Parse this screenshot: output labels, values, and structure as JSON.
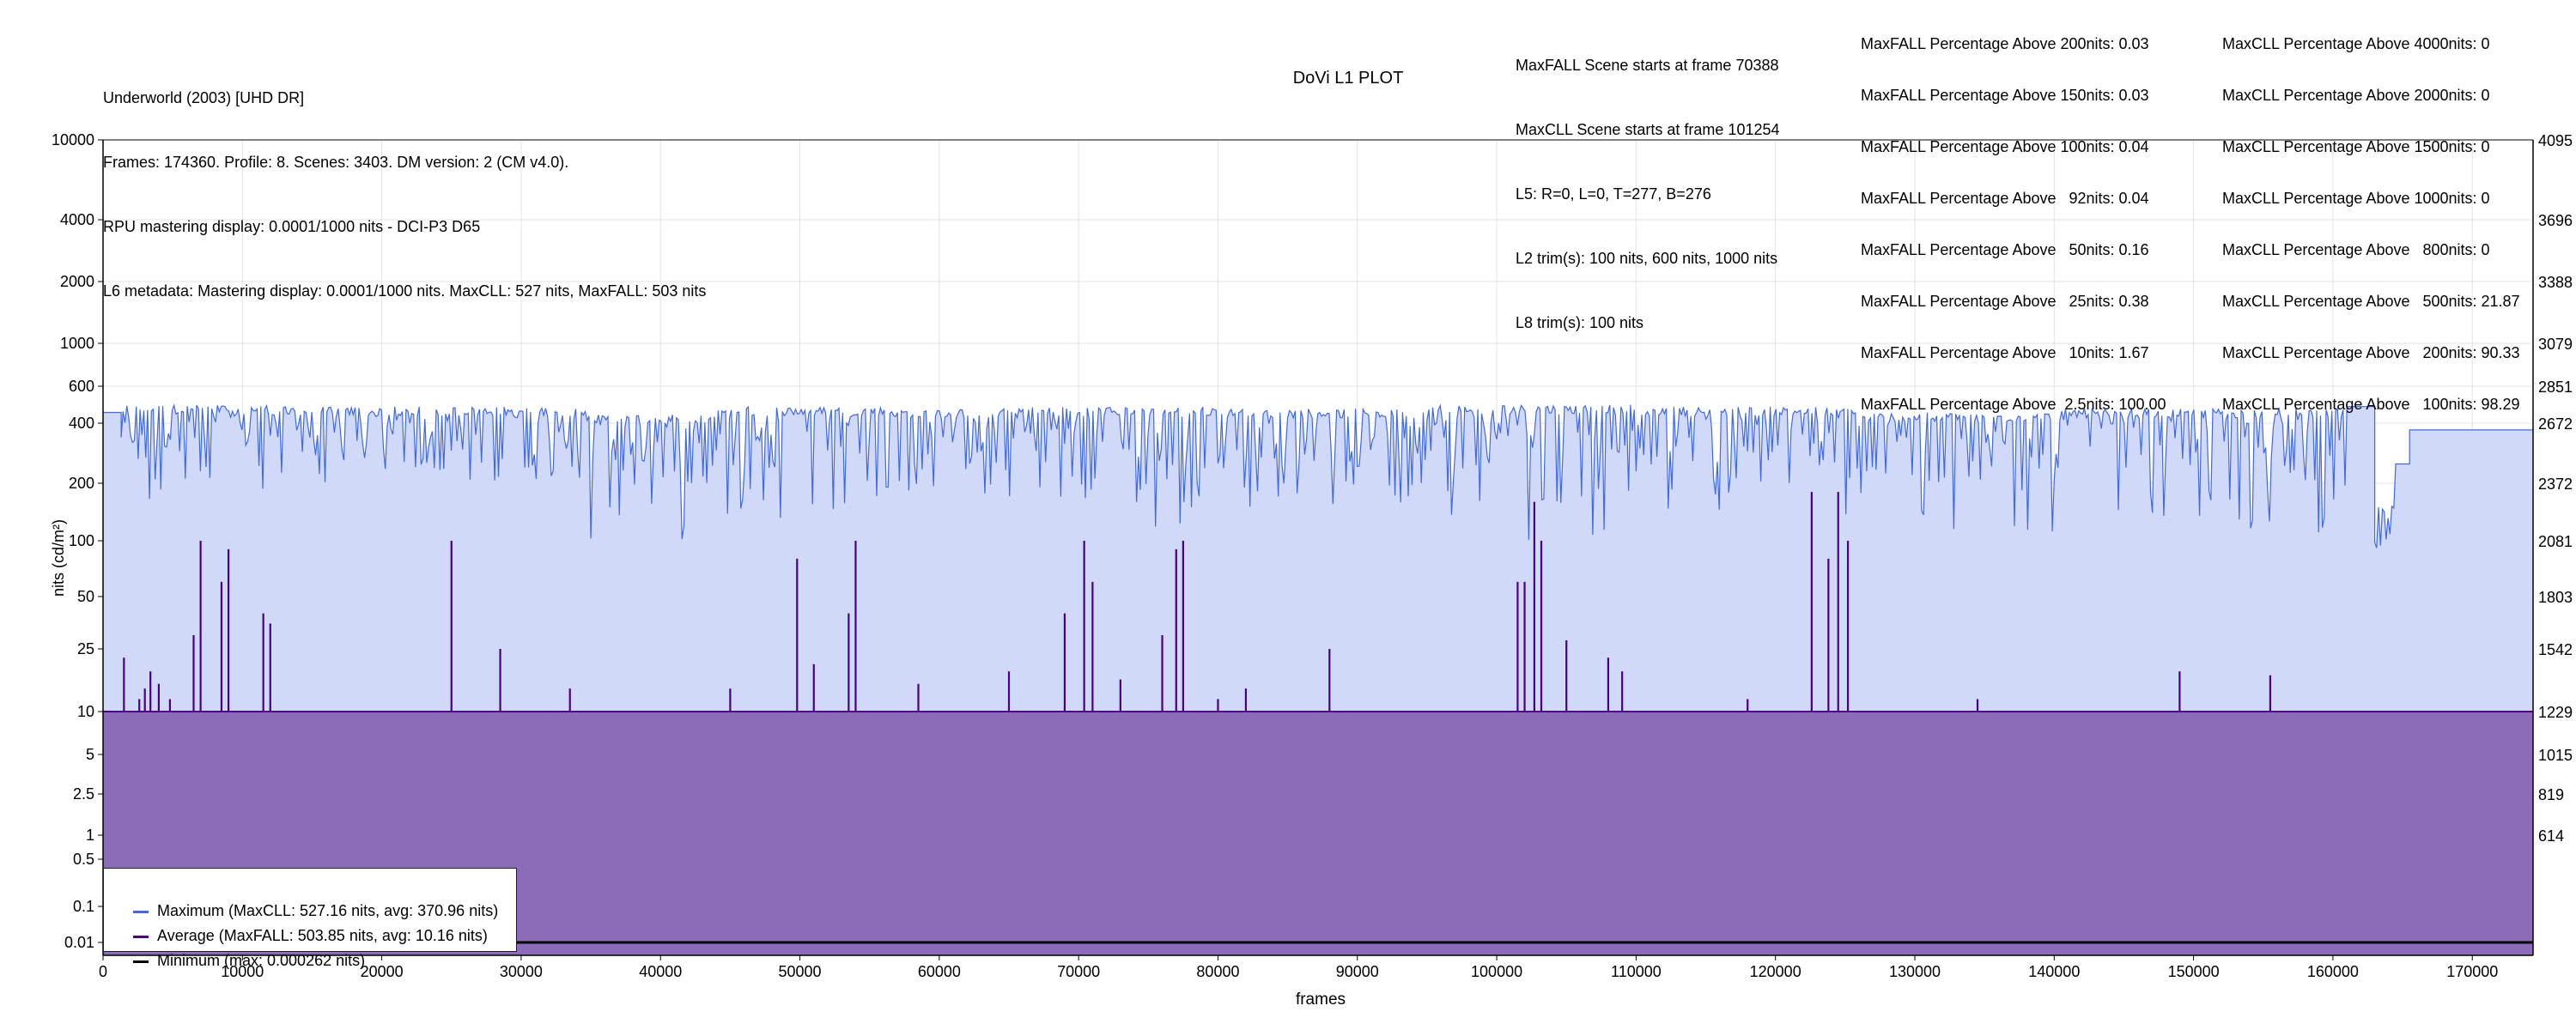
{
  "header": {
    "lines": [
      "Underworld (2003) [UHD DR]",
      "Frames: 174360. Profile: 8. Scenes: 3403. DM version: 2 (CM v4.0).",
      "RPU mastering display: 0.0001/1000 nits - DCI-P3 D65",
      "L6 metadata: Mastering display: 0.0001/1000 nits. MaxCLL: 527 nits, MaxFALL: 503 nits"
    ],
    "plot_title": "DoVi L1 PLOT",
    "scene_info": [
      "MaxFALL Scene starts at frame 70388",
      "MaxCLL Scene starts at frame 101254",
      "L5: R=0, L=0, T=277, B=276",
      "L2 trim(s): 100 nits, 600 nits, 1000 nits",
      "L8 trim(s): 100 nits"
    ],
    "maxfall_stats": [
      "MaxFALL Percentage Above 200nits: 0.03",
      "MaxFALL Percentage Above 150nits: 0.03",
      "MaxFALL Percentage Above 100nits: 0.04",
      "MaxFALL Percentage Above   92nits: 0.04",
      "MaxFALL Percentage Above   50nits: 0.16",
      "MaxFALL Percentage Above   25nits: 0.38",
      "MaxFALL Percentage Above   10nits: 1.67",
      "MaxFALL Percentage Above  2.5nits: 100.00"
    ],
    "maxcll_stats": [
      "MaxCLL Percentage Above 4000nits: 0",
      "MaxCLL Percentage Above 2000nits: 0",
      "MaxCLL Percentage Above 1500nits: 0",
      "MaxCLL Percentage Above 1000nits: 0",
      "MaxCLL Percentage Above   800nits: 0",
      "MaxCLL Percentage Above   500nits: 21.87",
      "MaxCLL Percentage Above   200nits: 90.33",
      "MaxCLL Percentage Above   100nits: 98.29"
    ]
  },
  "legend": {
    "items": [
      {
        "label": "Maximum (MaxCLL: 527.16 nits, avg: 370.96 nits)",
        "color": "#4169e1"
      },
      {
        "label": "Average (MaxFALL: 503.85 nits, avg: 10.16 nits)",
        "color": "#4b0082"
      },
      {
        "label": "Minimum (max: 0.000262 nits)",
        "color": "#000000"
      }
    ]
  },
  "chart_data": {
    "type": "line",
    "title": "DoVi L1 PLOT",
    "xlabel": "frames",
    "ylabel": "nits (cd/m²)",
    "xlim": [
      0,
      174360
    ],
    "y_scale": "pq",
    "x_ticks": [
      0,
      10000,
      20000,
      30000,
      40000,
      50000,
      60000,
      70000,
      80000,
      90000,
      100000,
      110000,
      120000,
      130000,
      140000,
      150000,
      160000,
      170000
    ],
    "x_tick_labels": [
      "0",
      "10000",
      "20000",
      "30000",
      "40000",
      "50000",
      "60000",
      "70000",
      "80000",
      "90000",
      "100000",
      "110000",
      "120000",
      "130000",
      "140000",
      "150000",
      "160000",
      "170000"
    ],
    "y_ticks": [
      {
        "label": "10000",
        "right": "4095"
      },
      {
        "label": "4000",
        "right": "3696"
      },
      {
        "label": "2000",
        "right": "3388"
      },
      {
        "label": "1000",
        "right": "3079"
      },
      {
        "label": "600",
        "right": "2851"
      },
      {
        "label": "400",
        "right": "2672"
      },
      {
        "label": "200",
        "right": "2372"
      },
      {
        "label": "100",
        "right": "2081"
      },
      {
        "label": "50",
        "right": "1803"
      },
      {
        "label": "25",
        "right": "1542"
      },
      {
        "label": "10",
        "right": "1229"
      },
      {
        "label": "5",
        "right": "1015"
      },
      {
        "label": "2.5",
        "right": "819"
      },
      {
        "label": "1",
        "right": "614"
      },
      {
        "label": "0.5",
        "right": ""
      },
      {
        "label": "0.1",
        "right": ""
      },
      {
        "label": "0.01",
        "right": ""
      }
    ],
    "y_tick_values": [
      10000,
      4000,
      2000,
      1000,
      600,
      400,
      200,
      100,
      50,
      25,
      10,
      5,
      2.5,
      1,
      0.5,
      0.1,
      0.01
    ],
    "grid": true,
    "legend_position": "lower-left",
    "series": [
      {
        "name": "Maximum (MaxCLL: 527.16 nits, avg: 370.96 nits)",
        "color": "#4169e1",
        "fill": "#d0d9f8",
        "segments": [
          {
            "x_start": 0,
            "x_end": 1300,
            "base": 450,
            "low": 450
          },
          {
            "x_start": 1300,
            "x_end": 12000,
            "base": 480,
            "low": 140
          },
          {
            "x_start": 12000,
            "x_end": 35000,
            "base": 470,
            "low": 200
          },
          {
            "x_start": 35000,
            "x_end": 44000,
            "base": 430,
            "low": 100
          },
          {
            "x_start": 44000,
            "x_end": 57000,
            "base": 470,
            "low": 130
          },
          {
            "x_start": 57000,
            "x_end": 66000,
            "base": 460,
            "low": 160
          },
          {
            "x_start": 66000,
            "x_end": 80000,
            "base": 470,
            "low": 110
          },
          {
            "x_start": 80000,
            "x_end": 95000,
            "base": 460,
            "low": 150
          },
          {
            "x_start": 95000,
            "x_end": 110000,
            "base": 480,
            "low": 100
          },
          {
            "x_start": 110000,
            "x_end": 126000,
            "base": 470,
            "low": 130
          },
          {
            "x_start": 126000,
            "x_end": 140000,
            "base": 440,
            "low": 100
          },
          {
            "x_start": 140000,
            "x_end": 161000,
            "base": 460,
            "low": 110
          },
          {
            "x_start": 161000,
            "x_end": 163000,
            "base": 480,
            "low": 480
          },
          {
            "x_start": 163000,
            "x_end": 164500,
            "base": 150,
            "low": 140
          },
          {
            "x_start": 164500,
            "x_end": 165500,
            "base": 250,
            "low": 250
          },
          {
            "x_start": 165500,
            "x_end": 174360,
            "base": 370,
            "low": 370
          }
        ]
      },
      {
        "name": "Average (MaxFALL: 503.85 nits, avg: 10.16 nits)",
        "color": "#4b0082",
        "fill": "#8c6bb9",
        "base_value": 10,
        "spikes": [
          [
            1500,
            22
          ],
          [
            2600,
            12
          ],
          [
            3000,
            14
          ],
          [
            3400,
            18
          ],
          [
            4000,
            15
          ],
          [
            4800,
            12
          ],
          [
            6500,
            30
          ],
          [
            7000,
            100
          ],
          [
            8500,
            60
          ],
          [
            9000,
            90
          ],
          [
            11500,
            40
          ],
          [
            12000,
            35
          ],
          [
            25000,
            100
          ],
          [
            28500,
            25
          ],
          [
            33500,
            14
          ],
          [
            45000,
            14
          ],
          [
            49800,
            80
          ],
          [
            51000,
            20
          ],
          [
            53500,
            40
          ],
          [
            54000,
            100
          ],
          [
            58500,
            15
          ],
          [
            65000,
            18
          ],
          [
            69000,
            40
          ],
          [
            70400,
            100
          ],
          [
            71000,
            60
          ],
          [
            73000,
            16
          ],
          [
            76000,
            30
          ],
          [
            77000,
            90
          ],
          [
            77500,
            100
          ],
          [
            80000,
            12
          ],
          [
            82000,
            14
          ],
          [
            88000,
            25
          ],
          [
            101500,
            60
          ],
          [
            102000,
            60
          ],
          [
            102700,
            160
          ],
          [
            103200,
            100
          ],
          [
            105000,
            28
          ],
          [
            108000,
            22
          ],
          [
            109000,
            18
          ],
          [
            118000,
            12
          ],
          [
            122600,
            180
          ],
          [
            123800,
            80
          ],
          [
            124500,
            180
          ],
          [
            125200,
            100
          ],
          [
            134500,
            12
          ],
          [
            149000,
            18
          ],
          [
            155500,
            17
          ]
        ]
      },
      {
        "name": "Minimum (max: 0.000262 nits)",
        "color": "#000000",
        "base_value": 0.0001
      }
    ]
  }
}
